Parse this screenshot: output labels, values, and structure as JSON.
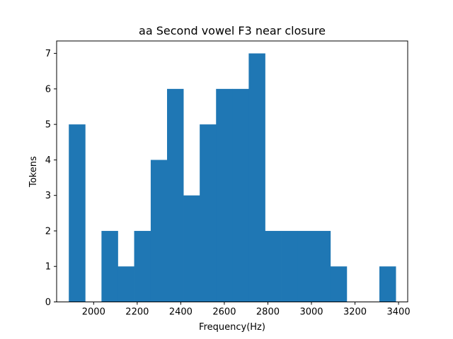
{
  "chart_data": {
    "type": "bar",
    "title": "aa Second vowel F3 near closure",
    "xlabel": "Frequency(Hz)",
    "ylabel": "Tokens",
    "xlim": [
      1830,
      3442
    ],
    "ylim": [
      0,
      7.35
    ],
    "xticks": [
      2000,
      2200,
      2400,
      2600,
      2800,
      3000,
      3200,
      3400
    ],
    "yticks": [
      0,
      1,
      2,
      3,
      4,
      5,
      6,
      7
    ],
    "bar_color": "#1f77b4",
    "grid": false,
    "bins": [
      {
        "x0": 1886,
        "x1": 1961,
        "count": 5
      },
      {
        "x0": 1961,
        "x1": 2036,
        "count": 0
      },
      {
        "x0": 2036,
        "x1": 2111,
        "count": 2
      },
      {
        "x0": 2111,
        "x1": 2186,
        "count": 1
      },
      {
        "x0": 2186,
        "x1": 2262,
        "count": 2
      },
      {
        "x0": 2262,
        "x1": 2337,
        "count": 4
      },
      {
        "x0": 2337,
        "x1": 2412,
        "count": 6
      },
      {
        "x0": 2412,
        "x1": 2487,
        "count": 3
      },
      {
        "x0": 2487,
        "x1": 2562,
        "count": 5
      },
      {
        "x0": 2562,
        "x1": 2637,
        "count": 6
      },
      {
        "x0": 2637,
        "x1": 2712,
        "count": 6
      },
      {
        "x0": 2712,
        "x1": 2787,
        "count": 7
      },
      {
        "x0": 2787,
        "x1": 2862,
        "count": 2
      },
      {
        "x0": 2862,
        "x1": 2937,
        "count": 2
      },
      {
        "x0": 2937,
        "x1": 3012,
        "count": 2
      },
      {
        "x0": 3012,
        "x1": 3087,
        "count": 2
      },
      {
        "x0": 3087,
        "x1": 3162,
        "count": 1
      },
      {
        "x0": 3162,
        "x1": 3237,
        "count": 0
      },
      {
        "x0": 3237,
        "x1": 3312,
        "count": 0
      },
      {
        "x0": 3312,
        "x1": 3387,
        "count": 1
      }
    ]
  }
}
